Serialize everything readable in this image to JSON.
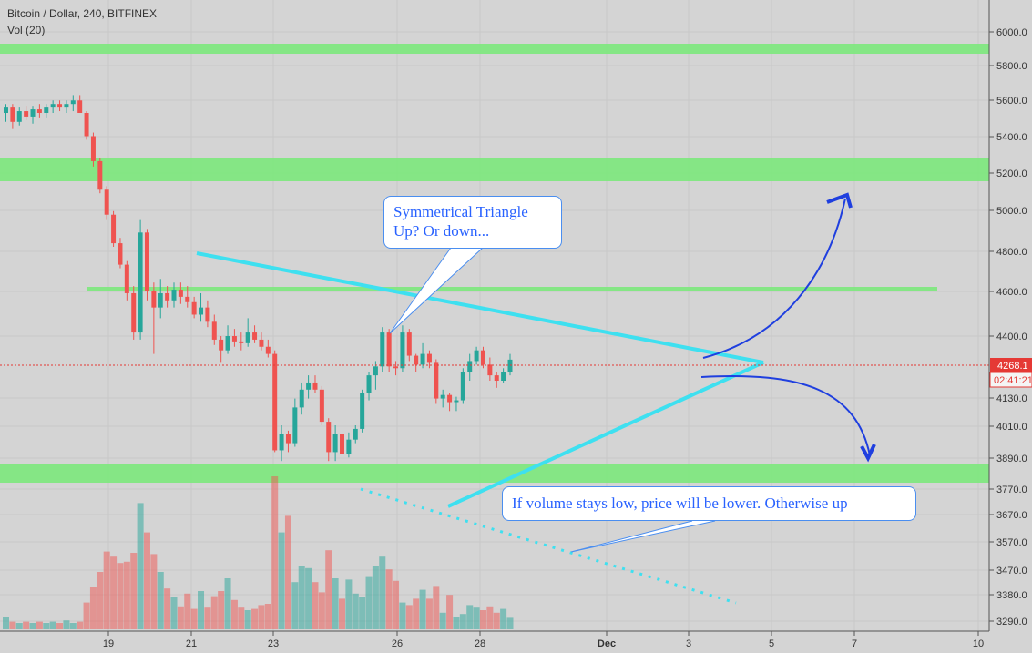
{
  "header": {
    "title": "Bitcoin / Dollar, 240, BITFINEX",
    "volume_label": "Vol (20)"
  },
  "annotations": {
    "triangle_note_line1": "Symmetrical Triangle",
    "triangle_note_line2": "Up? Or down...",
    "volume_note": "If volume stays low, price will be lower. Otherwise up"
  },
  "price_axis": {
    "ticks": [
      "6000.0",
      "5800.0",
      "5600.0",
      "5400.0",
      "5200.0",
      "5000.0",
      "4800.0",
      "4600.0",
      "4400.0",
      "4130.0",
      "4010.0",
      "3890.0",
      "3770.0",
      "3670.0",
      "3570.0",
      "3470.0",
      "3380.0",
      "3290.0"
    ],
    "last_price_label": "4268.1",
    "countdown_label": "02:41:21"
  },
  "time_axis": {
    "ticks": [
      "19",
      "21",
      "23",
      "26",
      "28",
      "Dec",
      "3",
      "5",
      "7",
      "10"
    ]
  },
  "colors": {
    "up": "#26a69a",
    "down": "#ef5350",
    "support_zone": "#7ce87c",
    "trendline": "#3ee0f0",
    "arrow": "#1f3fdf",
    "background": "#d4d4d4"
  },
  "chart_data": {
    "type": "candlestick",
    "symbol": "Bitcoin / Dollar, 240, BITFINEX",
    "y_scale_note": "price axis (USD)",
    "support_resistance_zones": [
      {
        "price_range": [
          5900,
          5950
        ]
      },
      {
        "price_range": [
          5160,
          5280
        ]
      },
      {
        "price_level": 4620
      },
      {
        "price_range": [
          3780,
          3840
        ]
      }
    ],
    "ohlc_approx": [
      [
        5650,
        5700,
        5600,
        5680
      ],
      [
        5680,
        5700,
        5560,
        5600
      ],
      [
        5600,
        5680,
        5580,
        5660
      ],
      [
        5660,
        5690,
        5610,
        5630
      ],
      [
        5630,
        5690,
        5590,
        5670
      ],
      [
        5670,
        5700,
        5620,
        5650
      ],
      [
        5650,
        5700,
        5620,
        5680
      ],
      [
        5680,
        5720,
        5650,
        5700
      ],
      [
        5700,
        5720,
        5660,
        5680
      ],
      [
        5680,
        5720,
        5650,
        5700
      ],
      [
        5700,
        5750,
        5660,
        5720
      ],
      [
        5720,
        5750,
        5680,
        5650
      ],
      [
        5650,
        5660,
        5500,
        5520
      ],
      [
        5520,
        5540,
        5350,
        5380
      ],
      [
        5380,
        5400,
        5200,
        5220
      ],
      [
        5220,
        5240,
        5050,
        5080
      ],
      [
        5080,
        5100,
        4900,
        4920
      ],
      [
        4920,
        4950,
        4780,
        4800
      ],
      [
        4800,
        4820,
        4600,
        4640
      ],
      [
        4640,
        4680,
        4380,
        4420
      ],
      [
        4420,
        5050,
        4380,
        4980
      ],
      [
        4980,
        5000,
        4600,
        4650
      ],
      [
        4650,
        4700,
        4300,
        4560
      ],
      [
        4560,
        4720,
        4500,
        4640
      ],
      [
        4640,
        4680,
        4560,
        4600
      ],
      [
        4600,
        4700,
        4560,
        4660
      ],
      [
        4660,
        4700,
        4580,
        4620
      ],
      [
        4620,
        4680,
        4560,
        4590
      ],
      [
        4590,
        4620,
        4500,
        4520
      ],
      [
        4520,
        4640,
        4480,
        4560
      ],
      [
        4560,
        4600,
        4450,
        4480
      ],
      [
        4480,
        4520,
        4350,
        4380
      ],
      [
        4380,
        4400,
        4250,
        4320
      ],
      [
        4320,
        4460,
        4300,
        4400
      ],
      [
        4400,
        4440,
        4340,
        4370
      ],
      [
        4370,
        4420,
        4320,
        4360
      ],
      [
        4360,
        4500,
        4340,
        4420
      ],
      [
        4420,
        4460,
        4360,
        4380
      ],
      [
        4380,
        4420,
        4320,
        4340
      ],
      [
        4340,
        4380,
        4280,
        4300
      ],
      [
        4300,
        4320,
        3750,
        3760
      ],
      [
        3760,
        3900,
        3700,
        3850
      ],
      [
        3850,
        3870,
        3750,
        3800
      ],
      [
        3800,
        4050,
        3780,
        4000
      ],
      [
        4000,
        4140,
        3960,
        4100
      ],
      [
        4100,
        4180,
        4050,
        4140
      ],
      [
        4140,
        4180,
        4080,
        4100
      ],
      [
        4100,
        4120,
        3900,
        3920
      ],
      [
        3920,
        3940,
        3700,
        3750
      ],
      [
        3750,
        3900,
        3700,
        3850
      ],
      [
        3850,
        3870,
        3720,
        3740
      ],
      [
        3740,
        3860,
        3720,
        3820
      ],
      [
        3820,
        3900,
        3800,
        3880
      ],
      [
        3880,
        4100,
        3860,
        4080
      ],
      [
        4080,
        4200,
        4040,
        4180
      ],
      [
        4180,
        4260,
        4100,
        4230
      ],
      [
        4230,
        4450,
        4200,
        4420
      ],
      [
        4420,
        4440,
        4200,
        4230
      ],
      [
        4230,
        4260,
        4180,
        4220
      ],
      [
        4220,
        4460,
        4200,
        4420
      ],
      [
        4420,
        4440,
        4260,
        4290
      ],
      [
        4290,
        4300,
        4200,
        4240
      ],
      [
        4240,
        4360,
        4220,
        4300
      ],
      [
        4300,
        4320,
        4220,
        4250
      ],
      [
        4250,
        4270,
        4020,
        4050
      ],
      [
        4050,
        4100,
        4000,
        4070
      ],
      [
        4070,
        4080,
        3980,
        4030
      ],
      [
        4030,
        4060,
        3980,
        4040
      ],
      [
        4040,
        4220,
        4020,
        4200
      ],
      [
        4200,
        4300,
        4150,
        4260
      ],
      [
        4260,
        4340,
        4240,
        4320
      ],
      [
        4320,
        4340,
        4220,
        4240
      ],
      [
        4240,
        4280,
        4150,
        4180
      ],
      [
        4180,
        4200,
        4110,
        4150
      ],
      [
        4150,
        4220,
        4140,
        4200
      ],
      [
        4200,
        4300,
        4180,
        4268
      ]
    ],
    "volume_approx": [
      1,
      0.6,
      0.5,
      0.6,
      0.5,
      0.6,
      0.5,
      0.6,
      0.5,
      0.7,
      0.5,
      0.6,
      2.1,
      3.3,
      4.5,
      6.1,
      5.7,
      5.2,
      5.3,
      6.0,
      9.9,
      7.6,
      5.9,
      4.5,
      3.2,
      2.5,
      1.8,
      2.8,
      1.6,
      3.0,
      1.7,
      2.6,
      3.0,
      4.0,
      2.3,
      1.7,
      1.5,
      1.6,
      1.9,
      2.0,
      12.0,
      7.6,
      8.9,
      3.7,
      5.0,
      4.8,
      3.7,
      2.9,
      6.2,
      4.0,
      2.4,
      3.9,
      2.8,
      2.5,
      4.1,
      5.0,
      5.7,
      4.7,
      3.8,
      2.1,
      1.9,
      2.4,
      3.1,
      2.4,
      3.4,
      1.3,
      2.7,
      1.0,
      1.2,
      1.9,
      1.7,
      1.5,
      1.8,
      1.3,
      1.6,
      0.9
    ]
  }
}
